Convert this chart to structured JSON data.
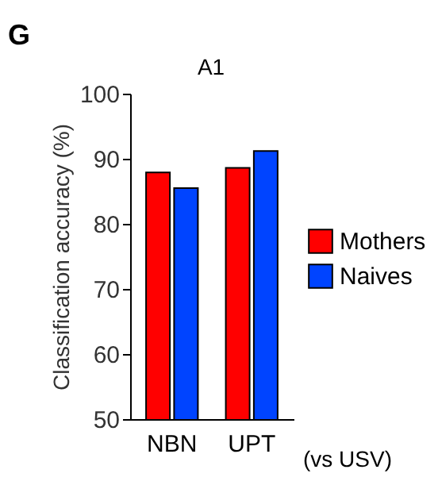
{
  "chart_data": {
    "type": "bar",
    "title": "A1",
    "ylabel": "Classification accuracy (%)",
    "categories": [
      "NBN",
      "UPT"
    ],
    "series": [
      {
        "name": "Mothers",
        "color": "#ff0000",
        "values": [
          87.9,
          88.6
        ]
      },
      {
        "name": "Naives",
        "color": "#0044ff",
        "values": [
          85.5,
          91.2
        ]
      }
    ],
    "ylim": [
      50,
      100
    ],
    "yticks": [
      50,
      60,
      70,
      80,
      90,
      100
    ],
    "grid": false,
    "legend": "right",
    "annotations": [
      "G",
      "(vs USV)"
    ]
  }
}
